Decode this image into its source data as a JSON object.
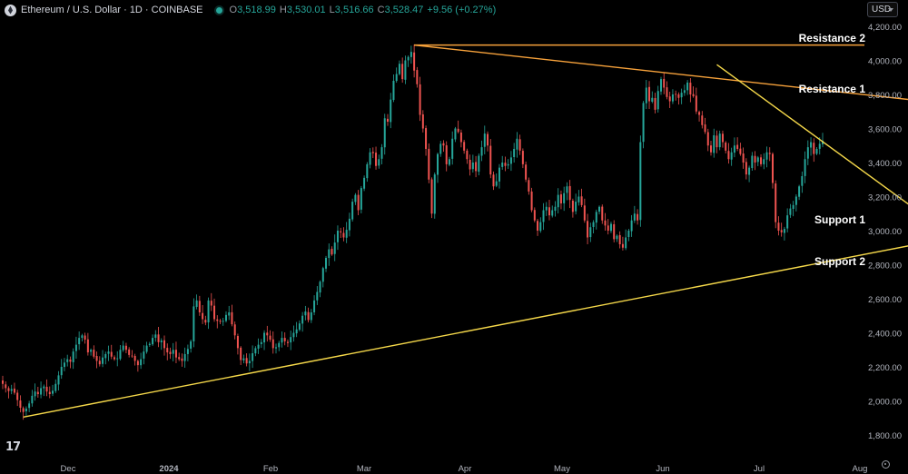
{
  "header": {
    "symbol_title": "Ethereum / U.S. Dollar · 1D · COINBASE",
    "open_label": "O",
    "open_value": "3,518.99",
    "high_label": "H",
    "high_value": "3,530.01",
    "low_label": "L",
    "low_value": "3,516.66",
    "close_label": "C",
    "close_value": "3,528.47",
    "change": "+9.56 (+0.27%)"
  },
  "currency_button": "USD",
  "colors": {
    "up": "#26a69a",
    "down": "#ef5350",
    "resistance": "#f7a23b",
    "support": "#f5d84a",
    "axis_text": "#b2b5be"
  },
  "chart_data": {
    "type": "candlestick",
    "x_ticks": [
      "Dec",
      "2024",
      "Feb",
      "Mar",
      "Apr",
      "May",
      "Jun",
      "Jul",
      "Aug"
    ],
    "y_ticks": [
      "4,200.00",
      "4,000.00",
      "3,800.00",
      "3,600.00",
      "3,400.00",
      "3,200.00",
      "3,000.00",
      "2,800.00",
      "2,600.00",
      "2,400.00",
      "2,200.00",
      "2,000.00",
      "1,800.00"
    ],
    "ylim": [
      1740,
      4255
    ],
    "last_price": 3528.47,
    "closes": [
      2100,
      2075,
      2058,
      2070,
      2048,
      2005,
      1960,
      1935,
      1955,
      1985,
      2030,
      2055,
      2040,
      2075,
      2085,
      2055,
      2040,
      2060,
      2100,
      2150,
      2200,
      2225,
      2245,
      2230,
      2290,
      2330,
      2370,
      2385,
      2360,
      2285,
      2300,
      2260,
      2235,
      2215,
      2255,
      2275,
      2290,
      2260,
      2245,
      2250,
      2300,
      2325,
      2300,
      2270,
      2265,
      2235,
      2210,
      2245,
      2290,
      2325,
      2335,
      2370,
      2390,
      2345,
      2355,
      2310,
      2285,
      2275,
      2300,
      2255,
      2245,
      2235,
      2275,
      2305,
      2350,
      2555,
      2590,
      2520,
      2480,
      2460,
      2590,
      2560,
      2480,
      2470,
      2465,
      2470,
      2505,
      2520,
      2450,
      2385,
      2310,
      2240,
      2250,
      2220,
      2235,
      2280,
      2310,
      2330,
      2345,
      2400,
      2385,
      2360,
      2310,
      2315,
      2340,
      2370,
      2350,
      2340,
      2375,
      2400,
      2420,
      2455,
      2500,
      2525,
      2475,
      2520,
      2590,
      2640,
      2700,
      2780,
      2840,
      2890,
      2860,
      2930,
      3000,
      2990,
      2960,
      3005,
      3070,
      3170,
      3210,
      3120,
      3250,
      3310,
      3390,
      3460,
      3455,
      3380,
      3420,
      3490,
      3660,
      3640,
      3770,
      3880,
      3920,
      3980,
      3890,
      4000,
      4020,
      4050,
      3940,
      3860,
      3680,
      3600,
      3480,
      3300,
      3100,
      3330,
      3450,
      3510,
      3500,
      3390,
      3420,
      3540,
      3600,
      3580,
      3520,
      3470,
      3420,
      3360,
      3400,
      3350,
      3440,
      3490,
      3570,
      3500,
      3330,
      3260,
      3290,
      3370,
      3400,
      3380,
      3390,
      3430,
      3480,
      3540,
      3470,
      3390,
      3300,
      3230,
      3120,
      3060,
      3000,
      3050,
      3120,
      3140,
      3090,
      3120,
      3140,
      3210,
      3160,
      3220,
      3260,
      3180,
      3110,
      3170,
      3200,
      3150,
      3060,
      2960,
      3020,
      3050,
      3110,
      3140,
      3060,
      3030,
      3000,
      3040,
      2950,
      2970,
      2920,
      2900,
      2960,
      3000,
      3060,
      3100,
      3060,
      3520,
      3750,
      3840,
      3760,
      3780,
      3710,
      3820,
      3890,
      3840,
      3785,
      3760,
      3800,
      3800,
      3780,
      3810,
      3825,
      3870,
      3800,
      3790,
      3700,
      3680,
      3620,
      3580,
      3500,
      3460,
      3560,
      3490,
      3570,
      3520,
      3470,
      3420,
      3460,
      3500,
      3480,
      3450,
      3400,
      3330,
      3370,
      3440,
      3400,
      3430,
      3390,
      3420,
      3460,
      3450,
      3280,
      3050,
      3000,
      2990,
      3010,
      3090,
      3130,
      3150,
      3200,
      3260,
      3320,
      3420,
      3490,
      3520,
      3450,
      3480,
      3510,
      3528
    ],
    "series": [
      {
        "name": "Resistance 2",
        "kind": "horizontal",
        "value": 4090
      },
      {
        "name": "Resistance 1",
        "kind": "descending-trendline",
        "points": [
          {
            "i": 140,
            "y": 4090
          },
          {
            "i": 311,
            "y": 3765
          }
        ]
      },
      {
        "name": "Support 1",
        "kind": "descending-trendline",
        "points": [
          {
            "i": 243,
            "y": 3975
          },
          {
            "i": 311,
            "y": 3120
          }
        ]
      },
      {
        "name": "Support 2",
        "kind": "ascending-trendline",
        "points": [
          {
            "i": 7,
            "y": 1905
          },
          {
            "i": 311,
            "y": 2920
          }
        ]
      }
    ]
  }
}
